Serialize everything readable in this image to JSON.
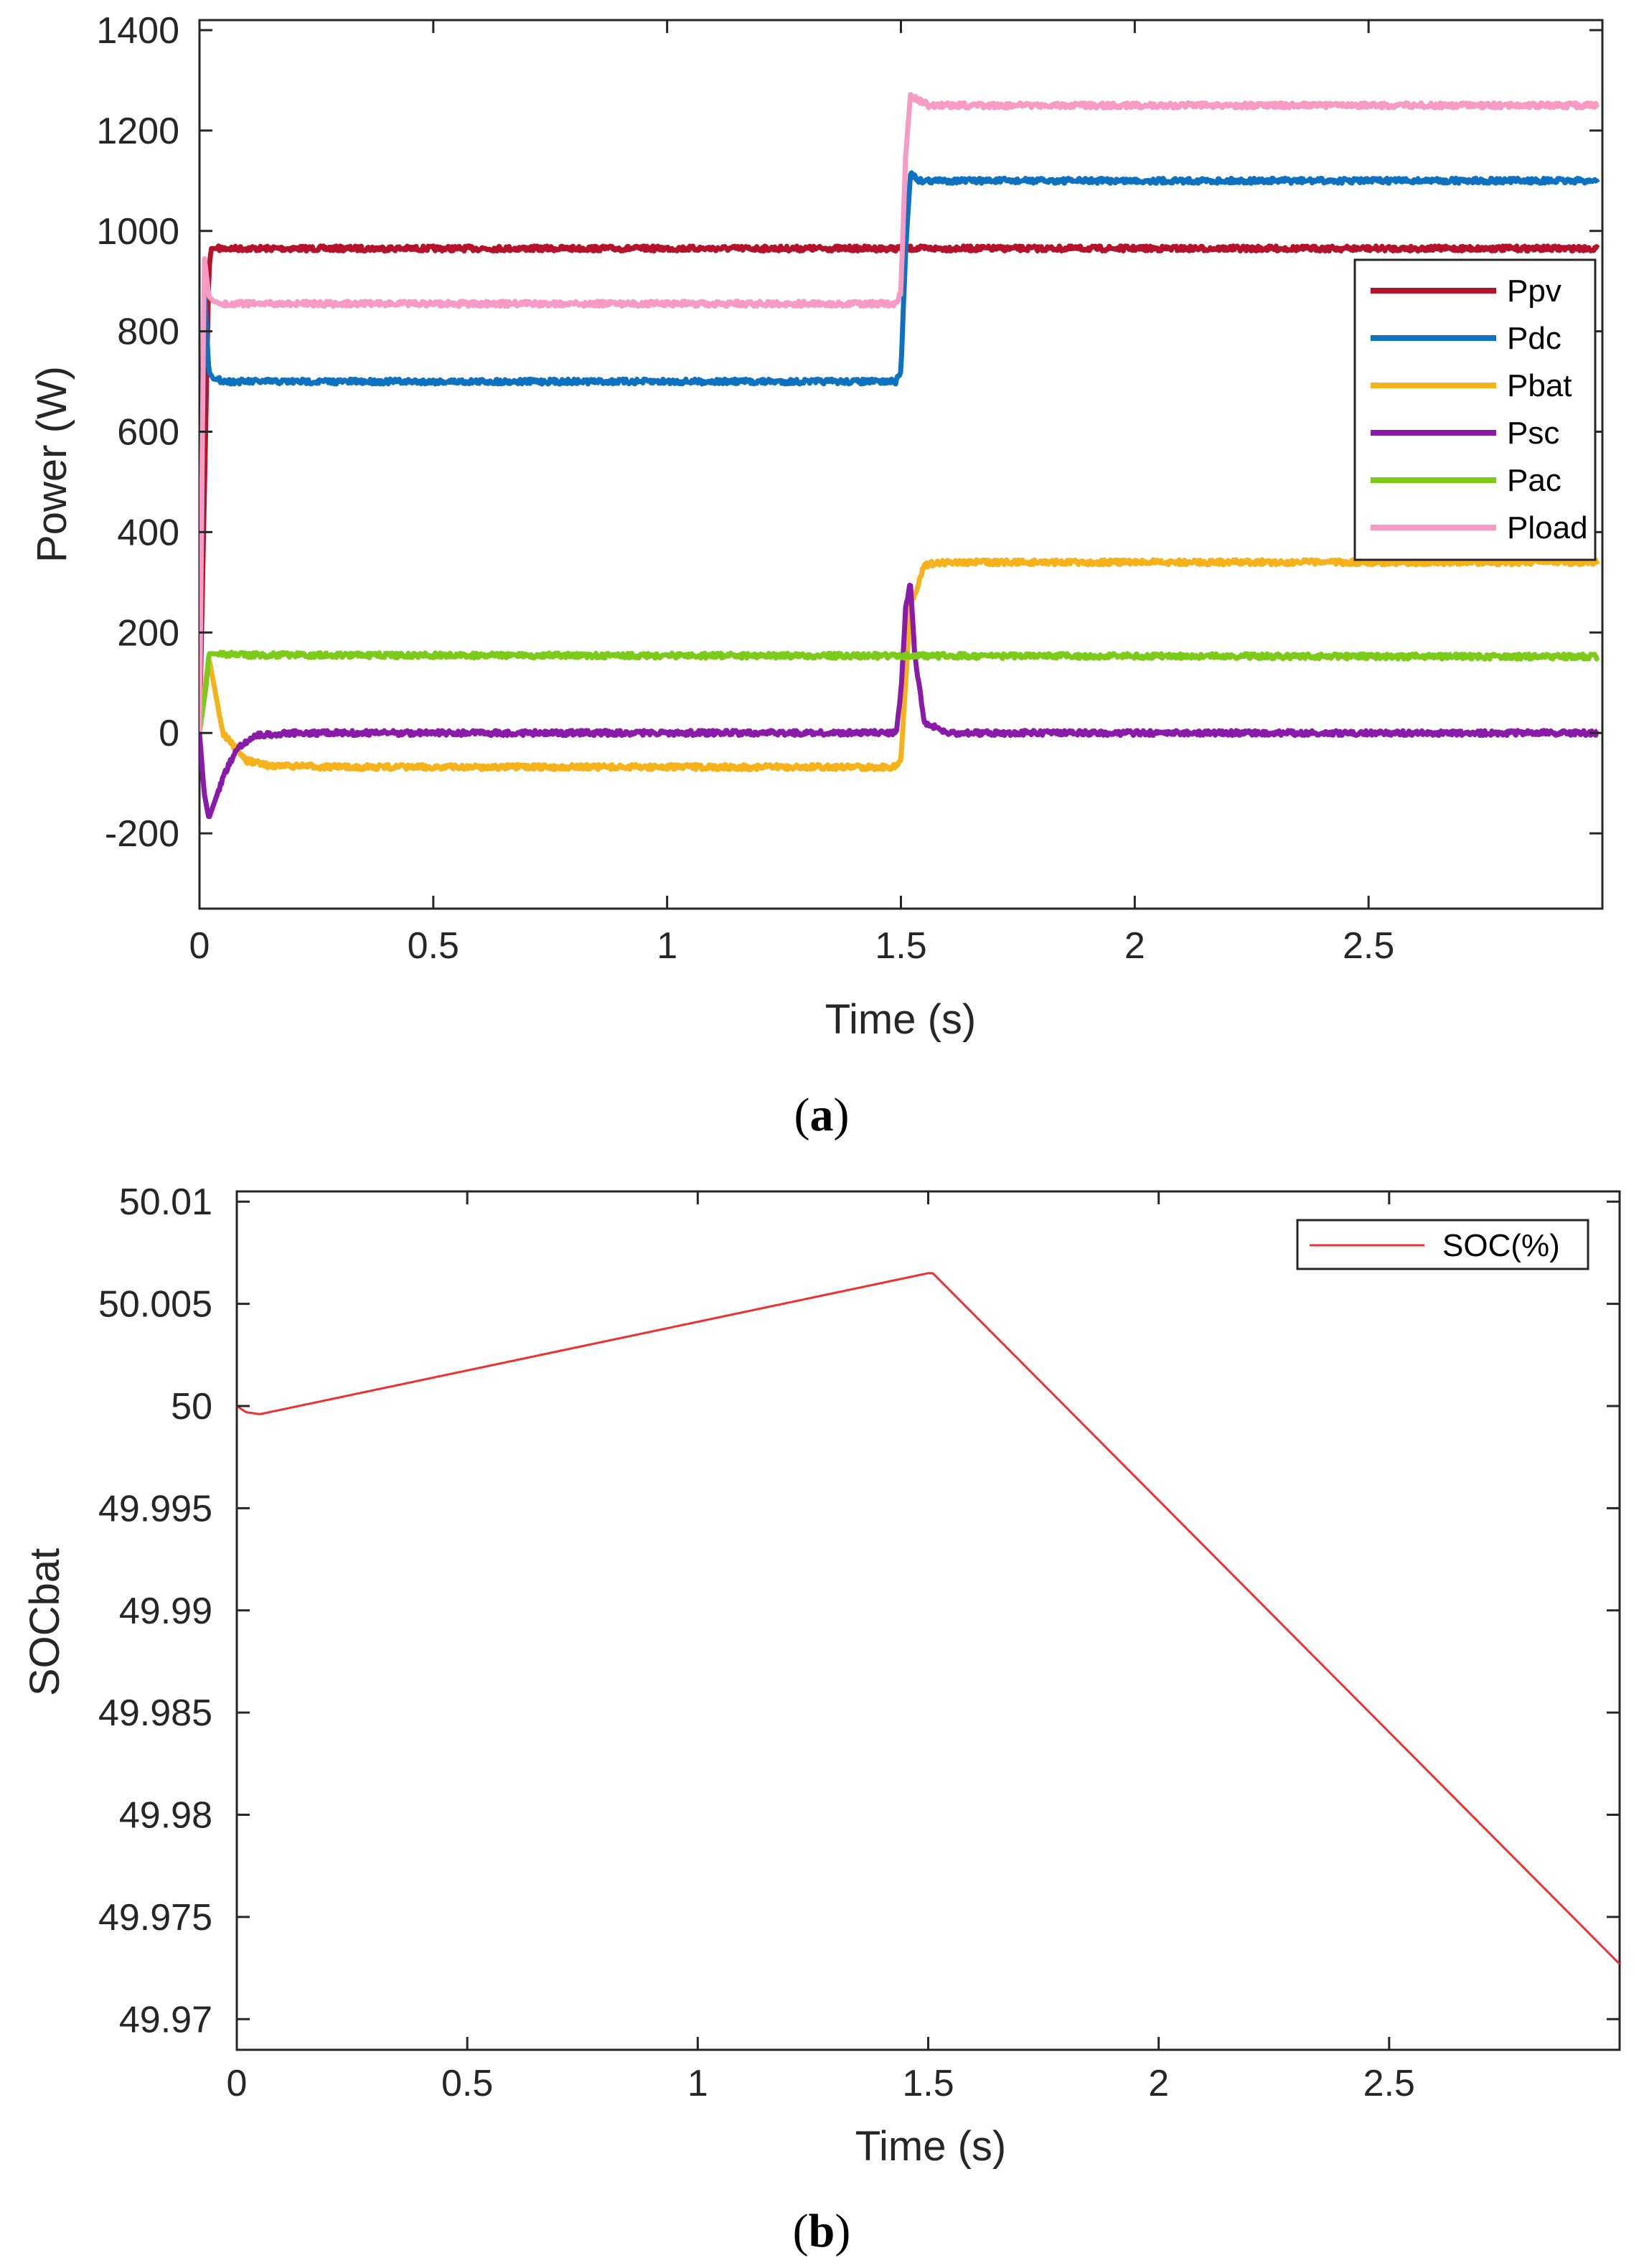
{
  "chart_data": [
    {
      "id": "a",
      "type": "line",
      "caption_letter": "a",
      "xlabel": "Time (s)",
      "ylabel": "Power (W)",
      "xlim": [
        0,
        3
      ],
      "ylim": [
        -350,
        1420
      ],
      "xticks": [
        0,
        0.5,
        1,
        1.5,
        2,
        2.5
      ],
      "xtick_labels": [
        "0",
        "0.5",
        "1",
        "1.5",
        "2",
        "2.5"
      ],
      "yticks": [
        -200,
        0,
        200,
        400,
        600,
        800,
        1000,
        1200,
        1400
      ],
      "ytick_labels": [
        "-200",
        "0",
        "200",
        "400",
        "600",
        "800",
        "1000",
        "1200",
        "1400"
      ],
      "legend_position": "right",
      "series": [
        {
          "name": "Ppv",
          "color": "#b5122b",
          "x": [
            0,
            0.02,
            0.025,
            0.05,
            1.5,
            1.52,
            2.99
          ],
          "y": [
            0,
            920,
            965,
            965,
            965,
            965,
            965
          ]
        },
        {
          "name": "Pdc",
          "color": "#0e72c0",
          "x": [
            0,
            0.01,
            0.02,
            0.03,
            0.06,
            1.49,
            1.5,
            1.51,
            1.52,
            1.54,
            2.99
          ],
          "y": [
            0,
            900,
            720,
            705,
            700,
            700,
            720,
            960,
            1115,
            1100,
            1100
          ]
        },
        {
          "name": "Pbat",
          "color": "#f6b21b",
          "x": [
            0,
            0.02,
            0.05,
            0.1,
            0.15,
            0.3,
            1.49,
            1.5,
            1.52,
            1.55,
            1.6,
            2.99
          ],
          "y": [
            0,
            150,
            0,
            -55,
            -65,
            -68,
            -68,
            -50,
            250,
            335,
            340,
            340
          ]
        },
        {
          "name": "Psc",
          "color": "#8a1aaa",
          "x": [
            0,
            0.01,
            0.02,
            0.05,
            0.08,
            0.12,
            0.2,
            1.49,
            1.5,
            1.51,
            1.52,
            1.53,
            1.55,
            1.6,
            2.99
          ],
          "y": [
            0,
            -120,
            -170,
            -90,
            -30,
            -5,
            0,
            0,
            80,
            250,
            300,
            150,
            20,
            0,
            0
          ]
        },
        {
          "name": "Pac",
          "color": "#7ccb1a",
          "x": [
            0,
            0.015,
            0.02,
            0.1,
            2.99
          ],
          "y": [
            0,
            100,
            158,
            155,
            152
          ]
        },
        {
          "name": "Pload",
          "color": "#f79ac4",
          "x": [
            0,
            0.01,
            0.02,
            0.03,
            0.05,
            1.49,
            1.5,
            1.51,
            1.52,
            1.53,
            1.56,
            2.99
          ],
          "y": [
            0,
            950,
            870,
            860,
            855,
            855,
            880,
            1150,
            1270,
            1265,
            1250,
            1250
          ]
        }
      ]
    },
    {
      "id": "b",
      "type": "line",
      "caption_letter": "b",
      "xlabel": "Time (s)",
      "ylabel": "SOCbat",
      "xlim": [
        0,
        3
      ],
      "ylim": [
        49.9685,
        50.0105
      ],
      "xticks": [
        0,
        0.5,
        1,
        1.5,
        2,
        2.5
      ],
      "xtick_labels": [
        "0",
        "0.5",
        "1",
        "1.5",
        "2",
        "2.5"
      ],
      "yticks": [
        49.97,
        49.975,
        49.98,
        49.985,
        49.99,
        49.995,
        50,
        50.005,
        50.01
      ],
      "ytick_labels": [
        "49.97",
        "49.975",
        "49.98",
        "49.985",
        "49.99",
        "49.995",
        "50",
        "50.005",
        "50.01"
      ],
      "legend_position": "top-right",
      "series": [
        {
          "name": "SOC(%)",
          "color": "#ee3030",
          "x": [
            0,
            0.02,
            0.05,
            1.5,
            1.51,
            3.0
          ],
          "y": [
            50.0,
            49.9997,
            49.9996,
            50.0065,
            50.0065,
            49.9727
          ]
        }
      ]
    }
  ]
}
